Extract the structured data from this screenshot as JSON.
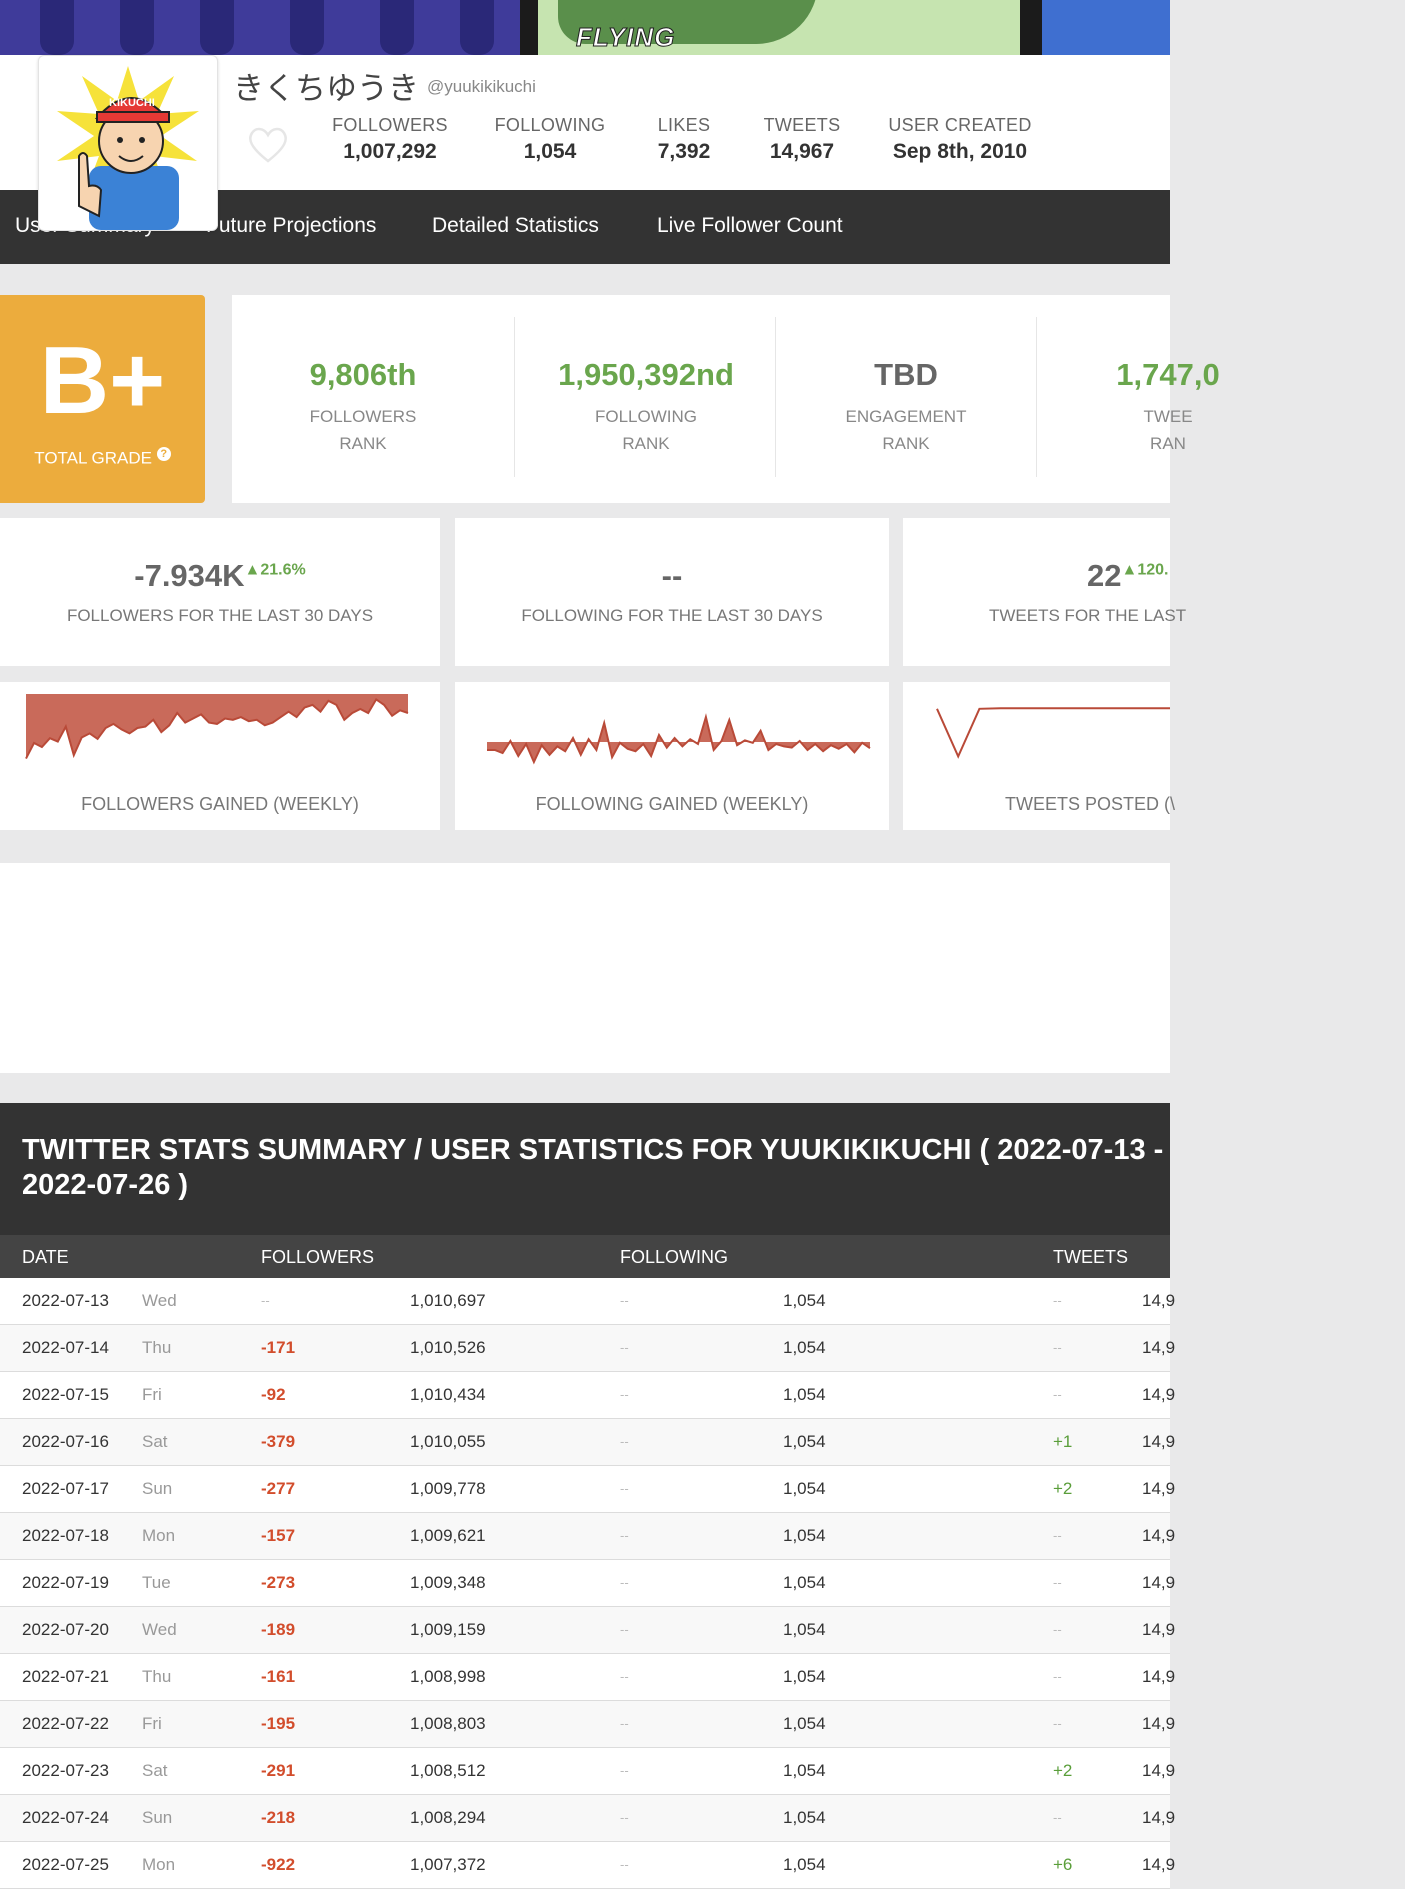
{
  "profile": {
    "name": "きくちゆうき",
    "handle": "@yuukikikuchi",
    "avatar_cap_text": "KIKUCHI",
    "banner_text": "FLYING",
    "stats": [
      {
        "label": "FOLLOWERS",
        "value": "1,007,292"
      },
      {
        "label": "FOLLOWING",
        "value": "1,054"
      },
      {
        "label": "LIKES",
        "value": "7,392"
      },
      {
        "label": "TWEETS",
        "value": "14,967"
      },
      {
        "label": "USER CREATED",
        "value": "Sep 8th, 2010"
      }
    ]
  },
  "nav": {
    "tabs": [
      "User Summary",
      "Future Projections",
      "Detailed Statistics",
      "Live Follower Count"
    ]
  },
  "grade": {
    "value": "B+",
    "label": "TOTAL GRADE"
  },
  "ranks": [
    {
      "value": "9,806th",
      "label1": "FOLLOWERS",
      "label2": "RANK"
    },
    {
      "value": "1,950,392nd",
      "label1": "FOLLOWING",
      "label2": "RANK"
    },
    {
      "value": "TBD",
      "label1": "ENGAGEMENT",
      "label2": "RANK"
    },
    {
      "value": "1,747,0",
      "label1": "TWEE",
      "label2": "RAN"
    }
  ],
  "last30": [
    {
      "value": "-7.934K",
      "change": "▲21.6%",
      "caption": "FOLLOWERS FOR THE LAST 30 DAYS"
    },
    {
      "value": "--",
      "change": "",
      "caption": "FOLLOWING FOR THE LAST 30 DAYS"
    },
    {
      "value": "22",
      "change": "▲120.",
      "caption": "TWEETS FOR THE LAST"
    }
  ],
  "sparklines": [
    {
      "caption": "FOLLOWERS GAINED (WEEKLY)"
    },
    {
      "caption": "FOLLOWING GAINED (WEEKLY)"
    },
    {
      "caption": "TWEETS POSTED (\\"
    }
  ],
  "chart_data": [
    {
      "type": "area",
      "title": "FOLLOWERS GAINED (WEEKLY)",
      "values": [
        0.05,
        0.28,
        0.22,
        0.35,
        0.3,
        0.52,
        0.1,
        0.36,
        0.42,
        0.34,
        0.5,
        0.56,
        0.48,
        0.42,
        0.5,
        0.52,
        0.62,
        0.44,
        0.54,
        0.72,
        0.58,
        0.64,
        0.7,
        0.58,
        0.56,
        0.64,
        0.62,
        0.66,
        0.6,
        0.62,
        0.54,
        0.58,
        0.66,
        0.74,
        0.66,
        0.8,
        0.84,
        0.74,
        0.9,
        0.84,
        0.62,
        0.72,
        0.78,
        0.72,
        0.92,
        0.84,
        0.68,
        0.76,
        0.72
      ]
    },
    {
      "type": "area",
      "title": "FOLLOWING GAINED (WEEKLY)",
      "values": [
        0.3,
        0.3,
        0.25,
        0.45,
        0.2,
        0.4,
        0.1,
        0.38,
        0.22,
        0.36,
        0.28,
        0.5,
        0.22,
        0.48,
        0.3,
        0.75,
        0.18,
        0.42,
        0.32,
        0.28,
        0.4,
        0.2,
        0.55,
        0.34,
        0.5,
        0.36,
        0.48,
        0.4,
        0.85,
        0.3,
        0.45,
        0.8,
        0.38,
        0.46,
        0.42,
        0.62,
        0.3,
        0.4,
        0.36,
        0.34,
        0.45,
        0.3,
        0.4,
        0.28,
        0.38,
        0.32,
        0.4,
        0.26,
        0.42,
        0.33
      ]
    },
    {
      "type": "line",
      "title": "TWEETS POSTED",
      "values": [
        0.95,
        0.1,
        0.95,
        0.96,
        0.96,
        0.96,
        0.96,
        0.96,
        0.96,
        0.96,
        0.96,
        0.96
      ]
    }
  ],
  "table": {
    "title": "TWITTER STATS SUMMARY / USER STATISTICS FOR YUUKIKIKUCHI ( 2022-07-13 - 2022-07-26 )",
    "headers": [
      "DATE",
      "FOLLOWERS",
      "FOLLOWING",
      "TWEETS"
    ],
    "rows": [
      {
        "date": "2022-07-13",
        "day": "Wed",
        "fchange": "--",
        "followers": "1,010,697",
        "gchange": "--",
        "following": "1,054",
        "tchange": "--",
        "tweets": "14,9"
      },
      {
        "date": "2022-07-14",
        "day": "Thu",
        "fchange": "-171",
        "followers": "1,010,526",
        "gchange": "--",
        "following": "1,054",
        "tchange": "--",
        "tweets": "14,9"
      },
      {
        "date": "2022-07-15",
        "day": "Fri",
        "fchange": "-92",
        "followers": "1,010,434",
        "gchange": "--",
        "following": "1,054",
        "tchange": "--",
        "tweets": "14,9"
      },
      {
        "date": "2022-07-16",
        "day": "Sat",
        "fchange": "-379",
        "followers": "1,010,055",
        "gchange": "--",
        "following": "1,054",
        "tchange": "+1",
        "tweets": "14,9"
      },
      {
        "date": "2022-07-17",
        "day": "Sun",
        "fchange": "-277",
        "followers": "1,009,778",
        "gchange": "--",
        "following": "1,054",
        "tchange": "+2",
        "tweets": "14,9"
      },
      {
        "date": "2022-07-18",
        "day": "Mon",
        "fchange": "-157",
        "followers": "1,009,621",
        "gchange": "--",
        "following": "1,054",
        "tchange": "--",
        "tweets": "14,9"
      },
      {
        "date": "2022-07-19",
        "day": "Tue",
        "fchange": "-273",
        "followers": "1,009,348",
        "gchange": "--",
        "following": "1,054",
        "tchange": "--",
        "tweets": "14,9"
      },
      {
        "date": "2022-07-20",
        "day": "Wed",
        "fchange": "-189",
        "followers": "1,009,159",
        "gchange": "--",
        "following": "1,054",
        "tchange": "--",
        "tweets": "14,9"
      },
      {
        "date": "2022-07-21",
        "day": "Thu",
        "fchange": "-161",
        "followers": "1,008,998",
        "gchange": "--",
        "following": "1,054",
        "tchange": "--",
        "tweets": "14,9"
      },
      {
        "date": "2022-07-22",
        "day": "Fri",
        "fchange": "-195",
        "followers": "1,008,803",
        "gchange": "--",
        "following": "1,054",
        "tchange": "--",
        "tweets": "14,9"
      },
      {
        "date": "2022-07-23",
        "day": "Sat",
        "fchange": "-291",
        "followers": "1,008,512",
        "gchange": "--",
        "following": "1,054",
        "tchange": "+2",
        "tweets": "14,9"
      },
      {
        "date": "2022-07-24",
        "day": "Sun",
        "fchange": "-218",
        "followers": "1,008,294",
        "gchange": "--",
        "following": "1,054",
        "tchange": "--",
        "tweets": "14,9"
      },
      {
        "date": "2022-07-25",
        "day": "Mon",
        "fchange": "-922",
        "followers": "1,007,372",
        "gchange": "--",
        "following": "1,054",
        "tchange": "+6",
        "tweets": "14,9"
      }
    ]
  },
  "colors": {
    "accent_green": "#6aa64d",
    "grade_orange": "#ecac3d",
    "negative_red": "#d24d2c",
    "chart_fill": "#c96a5a"
  }
}
